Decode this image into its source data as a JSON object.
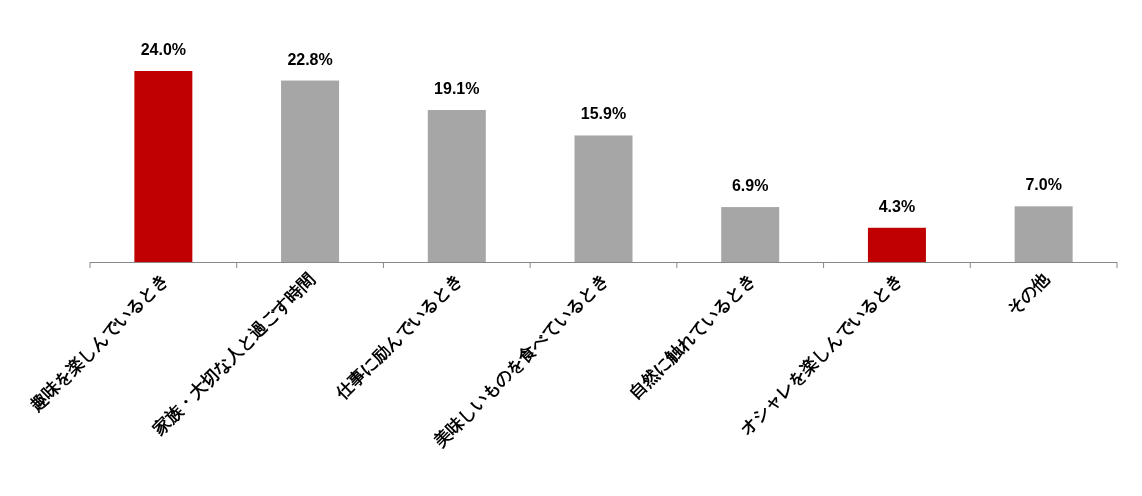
{
  "chart_data": {
    "type": "bar",
    "categories": [
      "趣味を楽しんでいるとき",
      "家族・大切な人と過ごす時間",
      "仕事に励んでいるとき",
      "美味しいものを食べているとき",
      "自然に触れているとき",
      "オシャレを楽しんでいるとき",
      "その他"
    ],
    "values": [
      24.0,
      22.8,
      19.1,
      15.9,
      6.9,
      4.3,
      7.0
    ],
    "colors": [
      "#c00000",
      "#a6a6a6",
      "#a6a6a6",
      "#a6a6a6",
      "#a6a6a6",
      "#c00000",
      "#a6a6a6"
    ],
    "value_labels": [
      "24.0%",
      "22.8%",
      "19.1%",
      "15.9%",
      "6.9%",
      "4.3%",
      "7.0%"
    ],
    "relative": false
  }
}
